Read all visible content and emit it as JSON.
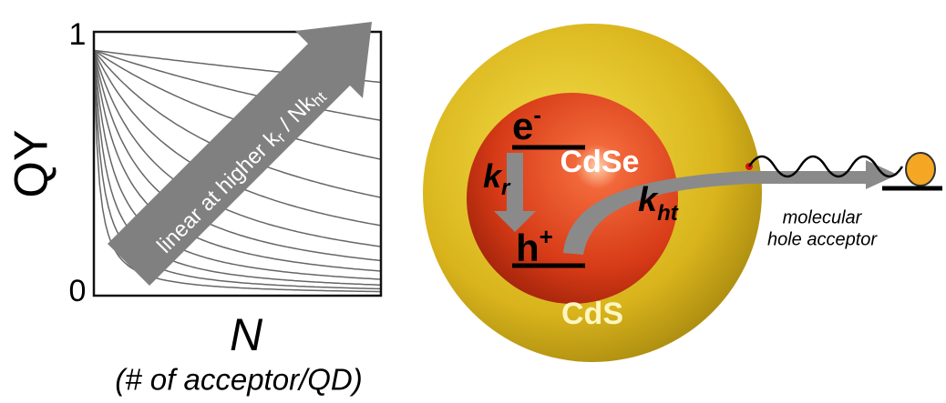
{
  "plot": {
    "y_axis_label": "QY",
    "y_top_label": "1",
    "y_bottom_label": "0",
    "x_axis_label": "N",
    "x_axis_sublabel": "(# of acceptor/QD)",
    "arrow_label": {
      "text1": "linear at higher k",
      "sub1": "r",
      "text2": " / Nk",
      "sub2": "ht"
    }
  },
  "diagram": {
    "electron": {
      "base": "e",
      "sup": "-"
    },
    "hole": {
      "base": "h",
      "sup": "+"
    },
    "recombination_rate": {
      "base": "k",
      "sub": "r"
    },
    "hole_transfer_rate": {
      "base": "k",
      "sub": "ht"
    },
    "core_label": "CdSe",
    "shell_label": "CdS",
    "acceptor_label": [
      "molecular",
      "hole acceptor"
    ]
  }
}
